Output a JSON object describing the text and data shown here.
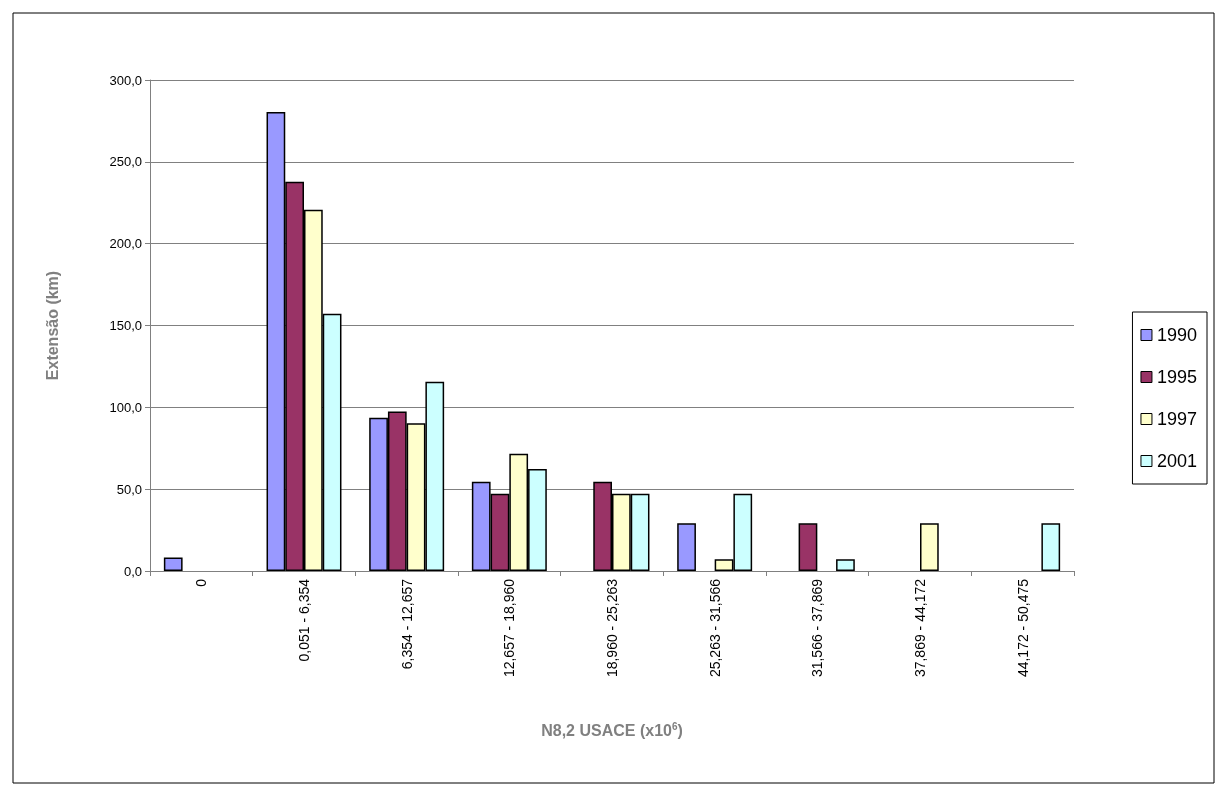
{
  "chart_data": {
    "type": "bar",
    "xlabel": "N8,2 USACE (x10$^{6}$)",
    "ylabel": "Extensão (km)",
    "categories": [
      "0",
      "0,051 - 6,354",
      "6,354 - 12,657",
      "12,657 - 18,960",
      "18,960 - 25,263",
      "25,263 - 31,566",
      "31,566 - 37,869",
      "37,869 - 44,172",
      "44,172 - 50,475"
    ],
    "series": [
      {
        "name": "1990",
        "color": "#9999ff",
        "values": [
          8.2,
          280.5,
          93.6,
          54.6,
          null,
          29.1,
          null,
          null,
          null
        ]
      },
      {
        "name": "1995",
        "color": "#993366",
        "values": [
          null,
          237.8,
          97.5,
          47.2,
          54.6,
          null,
          29.1,
          null,
          null
        ]
      },
      {
        "name": "1997",
        "color": "#ffffcc",
        "values": [
          null,
          220.7,
          90.2,
          71.7,
          47.2,
          7.2,
          null,
          29.1,
          null
        ]
      },
      {
        "name": "2001",
        "color": "#ccffff",
        "values": [
          null,
          157.2,
          115.6,
          62.3,
          47.2,
          47.2,
          7.2,
          null,
          29.1
        ]
      }
    ],
    "ylim": [
      0,
      300
    ],
    "yticks": [
      {
        "value": 0,
        "label": "0,0"
      },
      {
        "value": 50,
        "label": "50,0"
      },
      {
        "value": 100,
        "label": "100,0"
      },
      {
        "value": 150,
        "label": "150,0"
      },
      {
        "value": 200,
        "label": "200,0"
      },
      {
        "value": 250,
        "label": "250,0"
      },
      {
        "value": 300,
        "label": "300,0"
      }
    ],
    "grid": "y",
    "legend": "right"
  }
}
